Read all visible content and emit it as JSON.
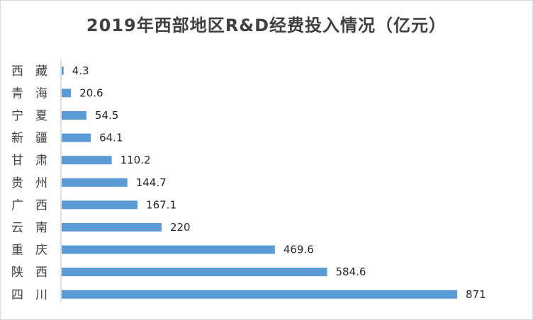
{
  "chart_data": {
    "type": "bar",
    "orientation": "horizontal",
    "title": "2019年西部地区R&D经费投入情况（亿元）",
    "categories": [
      "西　藏",
      "青　海",
      "宁　夏",
      "新　疆",
      "甘　肃",
      "贵　州",
      "广　西",
      "云　南",
      "重　庆",
      "陕　西",
      "四　川"
    ],
    "values": [
      4.3,
      20.6,
      54.5,
      64.1,
      110.2,
      144.7,
      167.1,
      220,
      469.6,
      584.6,
      871
    ],
    "value_labels": [
      "4.3",
      "20.6",
      "54.5",
      "64.1",
      "110.2",
      "144.7",
      "167.1",
      "220",
      "469.6",
      "584.6",
      "871"
    ],
    "xlabel": "",
    "ylabel": "",
    "xlim": [
      0,
      871
    ],
    "grid": false,
    "legend": "none",
    "colors": {
      "bar": "#5b9bd5",
      "axis": "#bfbfbf",
      "title": "#404040"
    }
  }
}
